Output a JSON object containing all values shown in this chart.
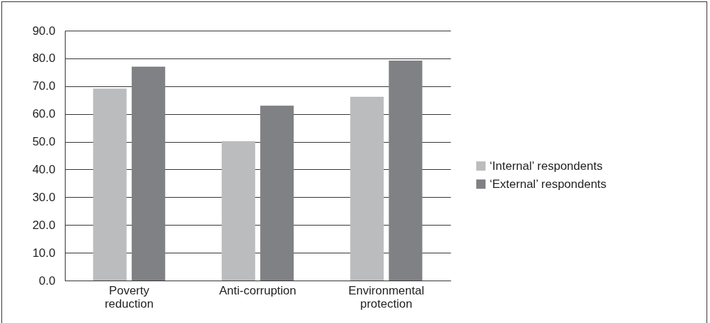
{
  "chart_data": {
    "type": "bar",
    "categories": [
      "Poverty reduction",
      "Anti-corruption",
      "Environmental protection"
    ],
    "series": [
      {
        "name": "‘Internal’ respondents",
        "color": "#bbbcbe",
        "values": [
          69.1,
          50.2,
          66.2
        ]
      },
      {
        "name": "‘External’ respondents",
        "color": "#808184",
        "values": [
          77.0,
          63.0,
          79.2
        ]
      }
    ],
    "ylim": [
      0,
      90
    ],
    "yticks": [
      {
        "value": 0,
        "label": "0.0"
      },
      {
        "value": 10,
        "label": "10.0"
      },
      {
        "value": 20,
        "label": "20.0"
      },
      {
        "value": 30,
        "label": "30.0"
      },
      {
        "value": 40,
        "label": "40.0"
      },
      {
        "value": 50,
        "label": "50.0"
      },
      {
        "value": 60,
        "label": "60.0"
      },
      {
        "value": 70,
        "label": "70.0"
      },
      {
        "value": 80,
        "label": "80.0"
      },
      {
        "value": 90,
        "label": "90.0"
      }
    ],
    "grid": "y",
    "legend": "right"
  }
}
